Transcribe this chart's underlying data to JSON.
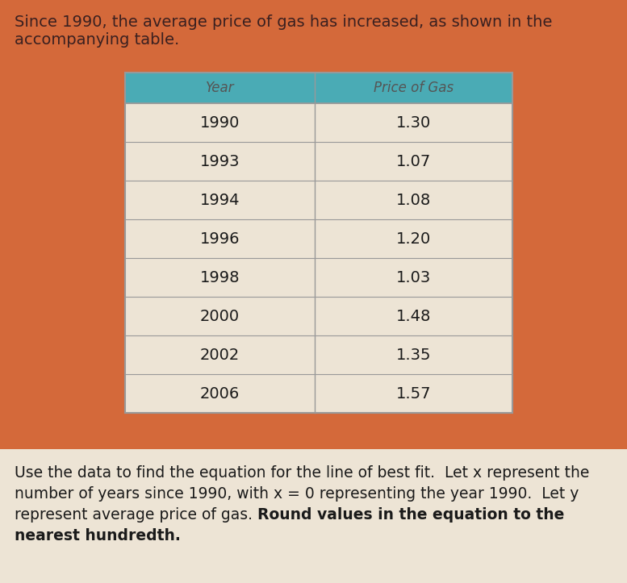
{
  "title_line1": "Since 1990, the average price of gas has increased, as shown in the",
  "title_line2": "accompanying table.",
  "col_headers": [
    "Year",
    "Price of Gas"
  ],
  "rows": [
    [
      "1990",
      "1.30"
    ],
    [
      "1993",
      "1.07"
    ],
    [
      "1994",
      "1.08"
    ],
    [
      "1996",
      "1.20"
    ],
    [
      "1998",
      "1.03"
    ],
    [
      "2000",
      "1.48"
    ],
    [
      "2002",
      "1.35"
    ],
    [
      "2006",
      "1.57"
    ]
  ],
  "footer_normal": "Use the data to find the equation for the line of best fit.  Let x represent the\nnumber of years since 1990, with x = 0 representing the year 1990.  Let y\nrepresent average price of gas. ",
  "footer_bold_inline": "Round values in the equation to the",
  "footer_bold_last": "nearest hundredth.",
  "bg_color": "#D4693A",
  "header_bg": "#4AABB5",
  "table_row_bg": "#EDE4D5",
  "table_border_color": "#999999",
  "header_text_color": "#555555",
  "cell_text_color": "#1A1A1A",
  "title_text_color": "#3A2020",
  "footer_bg": "#EDE4D5",
  "footer_text_color": "#1A1A1A",
  "title_fontsize": 14,
  "header_fontsize": 12,
  "cell_fontsize": 14,
  "footer_fontsize": 13.5,
  "figwidth": 7.77,
  "figheight": 7.23,
  "dpi": 100
}
